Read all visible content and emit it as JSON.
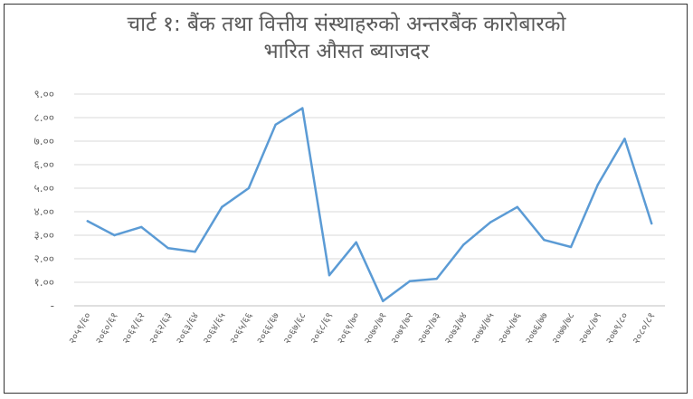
{
  "chart_data": {
    "type": "line",
    "title_line1": "चार्ट १: बैंक तथा वित्तीय संस्थाहरुको अन्तरबैंक कारोबारको",
    "title_line2": "भारित औसत ब्याजदर",
    "xlabel": "",
    "ylabel": "",
    "ylim": [
      0,
      9
    ],
    "yticks": [
      {
        "value": 0,
        "label": "-"
      },
      {
        "value": 1,
        "label": "१.००"
      },
      {
        "value": 2,
        "label": "२.००"
      },
      {
        "value": 3,
        "label": "३.००"
      },
      {
        "value": 4,
        "label": "४.००"
      },
      {
        "value": 5,
        "label": "५.००"
      },
      {
        "value": 6,
        "label": "६.००"
      },
      {
        "value": 7,
        "label": "७.००"
      },
      {
        "value": 8,
        "label": "८.००"
      },
      {
        "value": 9,
        "label": "९.००"
      }
    ],
    "grid": true,
    "categories": [
      "२०५९/६०",
      "२०६०/६१",
      "२०६१/६२",
      "२०६२/६३",
      "२०६३/६४",
      "२०६४/६५",
      "२०६५/६६",
      "२०६६/६७",
      "२०६७/६८",
      "२०६८/६९",
      "२०६९/७०",
      "२०७०/७१",
      "२०७१/७२",
      "२०७२/७३",
      "२०७३/७४",
      "२०७४/७५",
      "२०७५/७६",
      "२०७६/७७",
      "२०७७/७८",
      "२०७८/७९",
      "२०७९/८०",
      "२०८०/८१"
    ],
    "series": [
      {
        "values": [
          3.6,
          3.0,
          3.35,
          2.45,
          2.3,
          4.2,
          5.0,
          7.7,
          8.4,
          1.3,
          2.7,
          0.2,
          1.05,
          1.15,
          2.6,
          3.55,
          4.2,
          2.8,
          2.5,
          5.15,
          7.1,
          3.5
        ],
        "color": "#5b9bd5"
      }
    ]
  }
}
